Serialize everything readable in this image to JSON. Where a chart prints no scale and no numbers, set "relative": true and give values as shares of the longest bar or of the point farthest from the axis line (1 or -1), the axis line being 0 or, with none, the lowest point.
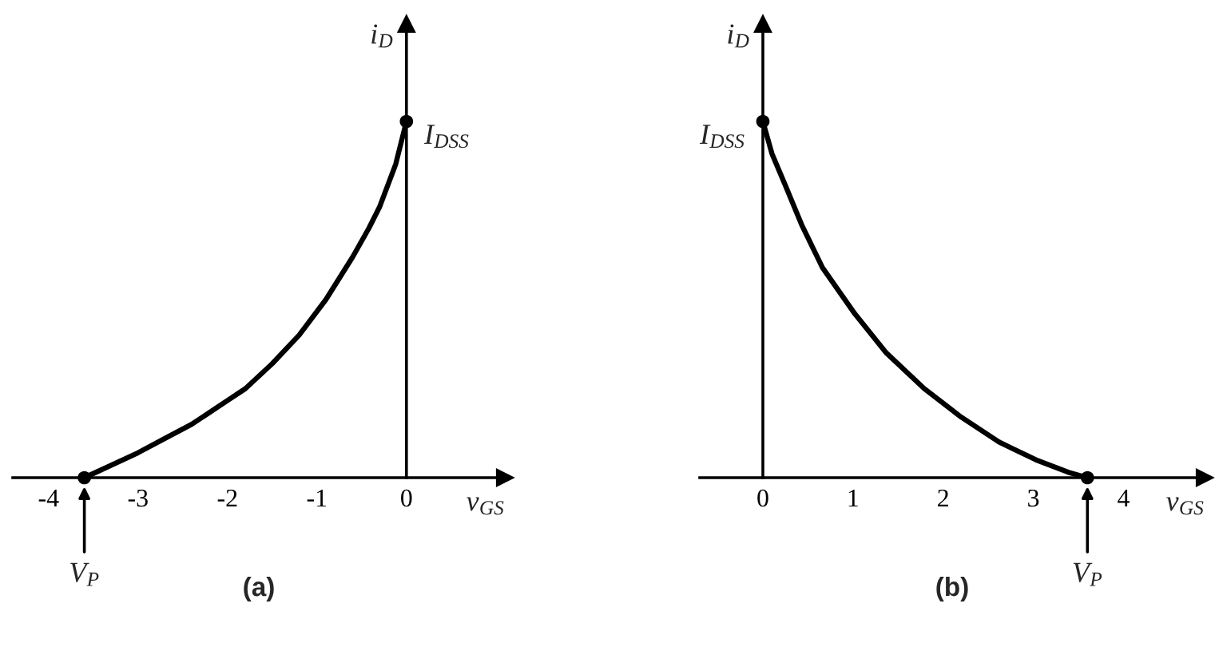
{
  "chart_data": [
    {
      "type": "line",
      "title": "(a)",
      "xlabel": "v$_{GS}$",
      "ylabel": "i$_{D}$",
      "relative": true,
      "xlim": [
        -4.4,
        1.1
      ],
      "xticks": [
        -4,
        -3,
        -2,
        -1,
        0
      ],
      "series": [
        {
          "color": "#000000",
          "x": [
            -3.6,
            -3.0,
            -2.7,
            -2.4,
            -1.98,
            -1.8,
            -1.5,
            -1.2,
            -0.9,
            -0.6,
            -0.42,
            -0.3,
            -0.12,
            0
          ],
          "values": [
            0,
            0.07,
            0.11,
            0.15,
            0.22,
            0.25,
            0.32,
            0.4,
            0.5,
            0.62,
            0.7,
            0.76,
            0.88,
            1
          ]
        },
        {
          "type": "scatter",
          "color": "#000000",
          "x": [
            -3.6,
            0
          ],
          "values": [
            0,
            1
          ]
        }
      ],
      "annotations": [
        {
          "text": "I$_{DSS}$",
          "x": 0,
          "y": 1
        },
        {
          "text": "V$_{P}$",
          "x": -3.6,
          "y": 0
        }
      ]
    },
    {
      "type": "line",
      "title": "(b)",
      "xlabel": "v$_{GS}$",
      "ylabel": "i$_{D}$",
      "relative": true,
      "xlim": [
        -0.7,
        4.9
      ],
      "xticks": [
        0,
        1,
        2,
        3,
        4
      ],
      "series": [
        {
          "color": "#000000",
          "x": [
            0,
            0.1,
            0.25,
            0.43,
            0.66,
            1.02,
            1.37,
            1.79,
            2.2,
            2.62,
            3.03,
            3.39,
            3.6
          ],
          "values": [
            1,
            0.91,
            0.82,
            0.71,
            0.59,
            0.46,
            0.35,
            0.25,
            0.17,
            0.1,
            0.05,
            0.015,
            0
          ]
        },
        {
          "type": "scatter",
          "color": "#000000",
          "x": [
            0,
            3.6
          ],
          "values": [
            1,
            0
          ]
        }
      ],
      "annotations": [
        {
          "text": "I$_{DSS}$",
          "x": 0,
          "y": 1
        },
        {
          "text": "V$_{P}$",
          "x": 3.6,
          "y": 0
        }
      ]
    }
  ]
}
